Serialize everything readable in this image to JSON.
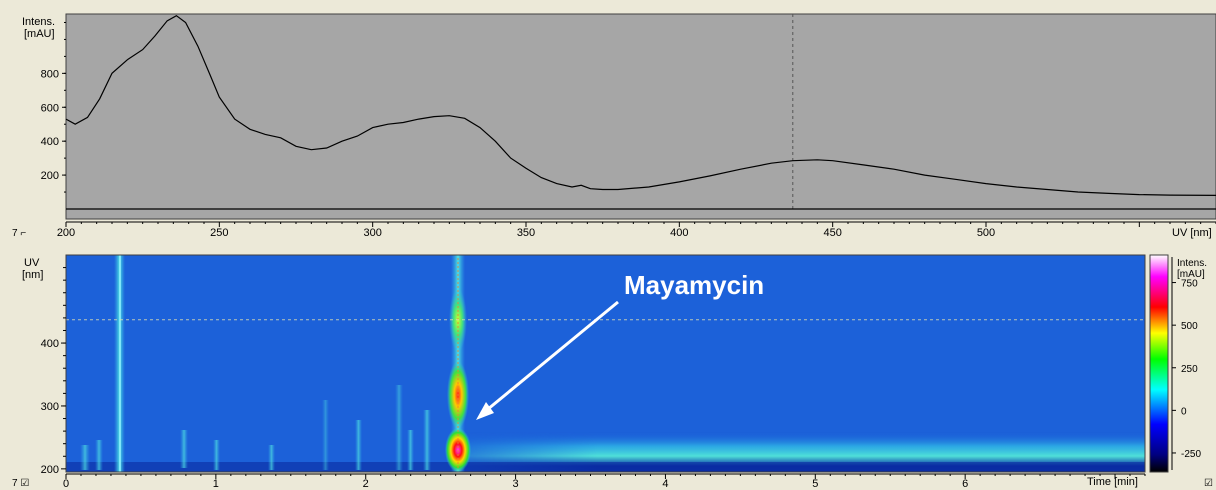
{
  "spectrum": {
    "y_label_line1": "Intens.",
    "y_label_line2": "[mAU]",
    "x_label": "UV [nm]",
    "controls": "7 ⌐"
  },
  "heatmap": {
    "y_label_line1": "UV",
    "y_label_line2": "[nm]",
    "x_label": "Time [min]",
    "annotation": "Mayamycin",
    "colorbar_label_line1": "Intens.",
    "colorbar_label_line2": "[mAU]",
    "colorbar_ticks": [
      "750",
      "500",
      "250",
      "0",
      "-250"
    ],
    "colorbar_values": [
      750,
      500,
      250,
      0,
      -250
    ],
    "colorbar_colors": [
      "#000000",
      "#000080",
      "#0000ff",
      "#00ffff",
      "#00ff00",
      "#ffff00",
      "#ff0000",
      "#ff00ff",
      "#ffffff"
    ],
    "controls_left": "7 ☑",
    "controls_right": "☑"
  },
  "chart_data": [
    {
      "type": "line",
      "xlabel": "UV [nm]",
      "ylabel": "Intens. [mAU]",
      "xlim": [
        200,
        575
      ],
      "ylim": [
        0,
        1150
      ],
      "x_ticks": [
        200,
        250,
        300,
        350,
        400,
        450,
        500
      ],
      "y_ticks": [
        200,
        400,
        600,
        800
      ],
      "cursor_x": 437,
      "grid": false,
      "background": "#a6a6a6",
      "x": [
        200,
        203,
        207,
        211,
        215,
        220,
        225,
        229,
        233,
        236,
        239,
        243,
        247,
        250,
        255,
        260,
        265,
        270,
        275,
        280,
        285,
        290,
        295,
        300,
        305,
        310,
        315,
        320,
        325,
        330,
        335,
        340,
        345,
        350,
        355,
        360,
        365,
        368,
        371,
        375,
        380,
        390,
        400,
        410,
        420,
        430,
        437,
        445,
        450,
        460,
        470,
        480,
        490,
        500,
        510,
        520,
        530,
        540,
        550,
        560,
        575
      ],
      "y": [
        530,
        500,
        540,
        650,
        800,
        880,
        940,
        1020,
        1110,
        1140,
        1100,
        960,
        790,
        660,
        530,
        470,
        440,
        420,
        370,
        350,
        360,
        400,
        430,
        480,
        500,
        510,
        530,
        545,
        550,
        535,
        480,
        400,
        300,
        240,
        185,
        150,
        130,
        140,
        120,
        115,
        115,
        130,
        160,
        195,
        235,
        270,
        285,
        290,
        285,
        260,
        235,
        200,
        175,
        150,
        130,
        115,
        100,
        92,
        85,
        82,
        80
      ]
    },
    {
      "type": "heatmap",
      "xlabel": "Time [min]",
      "ylabel": "UV [nm]",
      "xlim": [
        0,
        7.2
      ],
      "ylim": [
        195,
        540
      ],
      "x_ticks": [
        0,
        1,
        2,
        3,
        4,
        5,
        6
      ],
      "y_ticks": [
        200,
        300,
        400
      ],
      "cursor_wavelength": 437,
      "colorbar_range": [
        -350,
        900
      ],
      "features": [
        {
          "name": "injection band",
          "time": 0.35,
          "wavelength_range": [
            200,
            540
          ],
          "intensity": 260
        },
        {
          "name": "Mayamycin",
          "time": 2.6,
          "wavelength_range": [
            200,
            540
          ],
          "peaks": [
            {
              "wavelength": 235,
              "intensity": 900
            },
            {
              "wavelength": 325,
              "intensity": 500
            },
            {
              "wavelength": 440,
              "intensity": 270
            }
          ]
        },
        {
          "name": "baseline drift",
          "time_range": [
            2.6,
            7.2
          ],
          "wavelength_range": [
            200,
            240
          ],
          "intensity": 250
        }
      ]
    }
  ]
}
